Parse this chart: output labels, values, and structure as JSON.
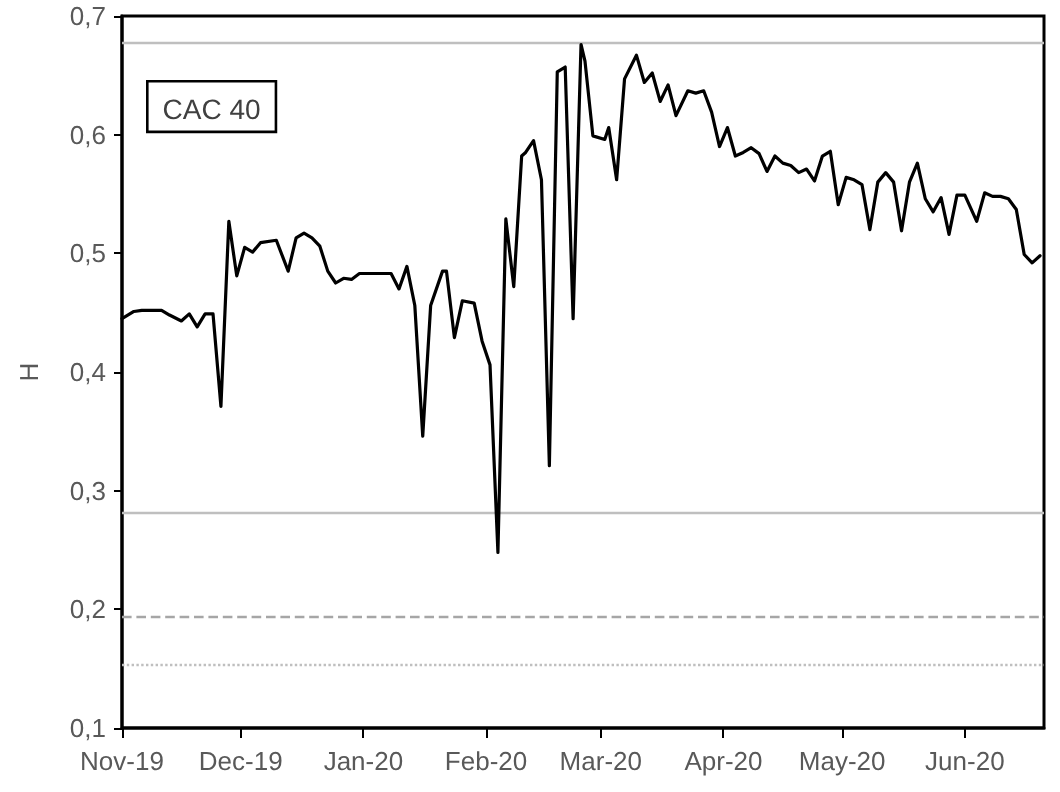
{
  "chart_data": {
    "type": "line",
    "ylabel": "H",
    "annotations": [
      "CAC 40"
    ],
    "x": [
      "2019-11-01",
      "2019-11-04",
      "2019-11-06",
      "2019-11-11",
      "2019-11-13",
      "2019-11-16",
      "2019-11-18",
      "2019-11-20",
      "2019-11-22",
      "2019-11-24",
      "2019-11-26",
      "2019-11-28",
      "2019-11-30",
      "2019-12-02",
      "2019-12-04",
      "2019-12-06",
      "2019-12-10",
      "2019-12-13",
      "2019-12-15",
      "2019-12-17",
      "2019-12-19",
      "2019-12-21",
      "2019-12-23",
      "2019-12-25",
      "2019-12-27",
      "2019-12-29",
      "2019-12-31",
      "2020-01-03",
      "2020-01-08",
      "2020-01-10",
      "2020-01-12",
      "2020-01-14",
      "2020-01-16",
      "2020-01-18",
      "2020-01-21",
      "2020-01-22",
      "2020-01-24",
      "2020-01-26",
      "2020-01-29",
      "2020-01-31",
      "2020-02-02",
      "2020-02-04",
      "2020-02-06",
      "2020-02-08",
      "2020-02-10",
      "2020-02-11",
      "2020-02-13",
      "2020-02-15",
      "2020-02-17",
      "2020-02-19",
      "2020-02-21",
      "2020-02-23",
      "2020-02-25",
      "2020-02-26",
      "2020-02-28",
      "2020-03-02",
      "2020-03-03",
      "2020-03-05",
      "2020-03-07",
      "2020-03-10",
      "2020-03-12",
      "2020-03-14",
      "2020-03-16",
      "2020-03-18",
      "2020-03-20",
      "2020-03-23",
      "2020-03-25",
      "2020-03-27",
      "2020-03-29",
      "2020-03-31",
      "2020-04-02",
      "2020-04-04",
      "2020-04-06",
      "2020-04-08",
      "2020-04-10",
      "2020-04-12",
      "2020-04-14",
      "2020-04-16",
      "2020-04-18",
      "2020-04-20",
      "2020-04-22",
      "2020-04-24",
      "2020-04-26",
      "2020-04-28",
      "2020-04-30",
      "2020-05-02",
      "2020-05-04",
      "2020-05-06",
      "2020-05-08",
      "2020-05-10",
      "2020-05-12",
      "2020-05-14",
      "2020-05-16",
      "2020-05-18",
      "2020-05-20",
      "2020-05-22",
      "2020-05-24",
      "2020-05-26",
      "2020-05-28",
      "2020-05-30",
      "2020-06-01",
      "2020-06-04",
      "2020-06-06",
      "2020-06-08",
      "2020-06-10",
      "2020-06-12",
      "2020-06-14",
      "2020-06-16",
      "2020-06-18",
      "2020-06-20"
    ],
    "series": [
      {
        "color": "#000000",
        "values": [
          0.445,
          0.451,
          0.452,
          0.452,
          0.448,
          0.443,
          0.449,
          0.438,
          0.449,
          0.449,
          0.371,
          0.527,
          0.481,
          0.505,
          0.501,
          0.509,
          0.511,
          0.485,
          0.513,
          0.517,
          0.513,
          0.506,
          0.485,
          0.475,
          0.479,
          0.478,
          0.483,
          0.483,
          0.483,
          0.47,
          0.489,
          0.456,
          0.346,
          0.456,
          0.485,
          0.485,
          0.429,
          0.46,
          0.458,
          0.426,
          0.406,
          0.248,
          0.529,
          0.472,
          0.582,
          0.585,
          0.595,
          0.562,
          0.321,
          0.653,
          0.657,
          0.445,
          0.676,
          0.662,
          0.599,
          0.596,
          0.606,
          0.562,
          0.647,
          0.667,
          0.644,
          0.652,
          0.628,
          0.642,
          0.616,
          0.637,
          0.635,
          0.637,
          0.619,
          0.59,
          0.606,
          0.582,
          0.585,
          0.589,
          0.584,
          0.569,
          0.582,
          0.576,
          0.574,
          0.568,
          0.571,
          0.561,
          0.582,
          0.586,
          0.541,
          0.564,
          0.562,
          0.558,
          0.52,
          0.56,
          0.568,
          0.56,
          0.519,
          0.56,
          0.576,
          0.546,
          0.535,
          0.547,
          0.516,
          0.549,
          0.549,
          0.527,
          0.551,
          0.548,
          0.548,
          0.546,
          0.537,
          0.499,
          0.492,
          0.498
        ]
      }
    ],
    "xlim": [
      "2019-11-01",
      "2020-06-21"
    ],
    "xticks": [
      {
        "value": "2019-11-01",
        "label": "Nov-19"
      },
      {
        "value": "2019-12-01",
        "label": "Dec-19"
      },
      {
        "value": "2020-01-01",
        "label": "Jan-20"
      },
      {
        "value": "2020-02-01",
        "label": "Feb-20"
      },
      {
        "value": "2020-03-01",
        "label": "Mar-20"
      },
      {
        "value": "2020-04-01",
        "label": "Apr-20"
      },
      {
        "value": "2020-05-01",
        "label": "May-20"
      },
      {
        "value": "2020-06-01",
        "label": "Jun-20"
      }
    ],
    "ylim": [
      0.1,
      0.7
    ],
    "yticks": [
      {
        "value": 0.1,
        "label": "0,1"
      },
      {
        "value": 0.2,
        "label": "0,2"
      },
      {
        "value": 0.3,
        "label": "0,3"
      },
      {
        "value": 0.4,
        "label": "0,4"
      },
      {
        "value": 0.5,
        "label": "0,5"
      },
      {
        "value": 0.6,
        "label": "0,6"
      },
      {
        "value": 0.7,
        "label": "0,7"
      }
    ],
    "ref_lines": [
      {
        "axis": "y",
        "value": 0.678,
        "color": "#bfbfbf",
        "line_style": "solid"
      },
      {
        "axis": "y",
        "value": 0.282,
        "color": "#bfbfbf",
        "line_style": "solid"
      },
      {
        "axis": "y",
        "value": 0.194,
        "color": "#a6a6a6",
        "line_style": "dashed"
      },
      {
        "axis": "y",
        "value": 0.154,
        "color": "#bfbfbf",
        "line_style": "dotted"
      }
    ],
    "grid": false,
    "marker": "none",
    "line_style": "solid"
  }
}
